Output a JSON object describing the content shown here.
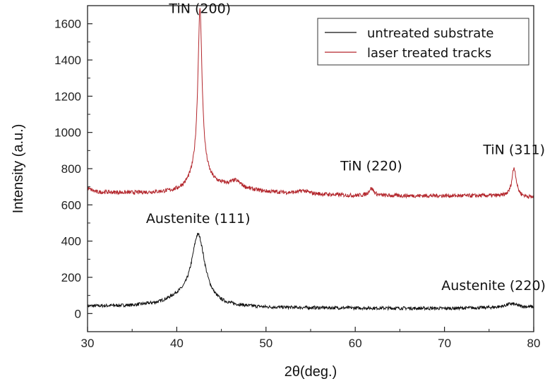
{
  "chart_data": {
    "type": "line",
    "title": "",
    "xlabel": "2θ(deg.)",
    "ylabel": "Intensity (a.u.)",
    "xlim": [
      30,
      80
    ],
    "ylim": [
      -100,
      1700
    ],
    "x_ticks": [
      30,
      40,
      50,
      60,
      70,
      80
    ],
    "y_ticks": [
      0,
      200,
      400,
      600,
      800,
      1000,
      1200,
      1400,
      1600
    ],
    "grid": false,
    "legend_position": "top-right",
    "series": [
      {
        "name": "untreated substrate",
        "color": "#111111",
        "baseline": [
          [
            30,
            40
          ],
          [
            35,
            42
          ],
          [
            38,
            52
          ],
          [
            40,
            75
          ],
          [
            45,
            40
          ],
          [
            50,
            32
          ],
          [
            60,
            30
          ],
          [
            70,
            28
          ],
          [
            75,
            32
          ],
          [
            80,
            35
          ]
        ],
        "peaks": [
          {
            "center": 42.4,
            "height": 380,
            "width": 0.9
          },
          {
            "center": 77.5,
            "height": 20,
            "width": 0.8
          }
        ]
      },
      {
        "name": "laser treated tracks",
        "color": "#b3262c",
        "baseline": [
          [
            30,
            690
          ],
          [
            31,
            670
          ],
          [
            35,
            665
          ],
          [
            40,
            665
          ],
          [
            45,
            690
          ],
          [
            50,
            670
          ],
          [
            55,
            660
          ],
          [
            60,
            650
          ],
          [
            65,
            650
          ],
          [
            70,
            650
          ],
          [
            75,
            650
          ],
          [
            80,
            640
          ]
        ],
        "peaks": [
          {
            "center": 42.6,
            "height": 880,
            "width": 0.28
          },
          {
            "center": 42.6,
            "height": 120,
            "width": 1.1
          },
          {
            "center": 46.6,
            "height": 40,
            "width": 0.8
          },
          {
            "center": 54.2,
            "height": 15,
            "width": 0.6
          },
          {
            "center": 61.8,
            "height": 40,
            "width": 0.35
          },
          {
            "center": 77.8,
            "height": 160,
            "width": 0.3
          }
        ]
      }
    ],
    "annotations": [
      {
        "text": "TiN (200)",
        "x": 42.6,
        "y": 1660
      },
      {
        "text": "TiN (220)",
        "x": 61.8,
        "y": 790
      },
      {
        "text": "TiN (311)",
        "x": 77.8,
        "y": 880
      },
      {
        "text": "Austenite (111)",
        "x": 42.4,
        "y": 500
      },
      {
        "text": "Austenite (220)",
        "x": 75.5,
        "y": 130
      }
    ]
  }
}
